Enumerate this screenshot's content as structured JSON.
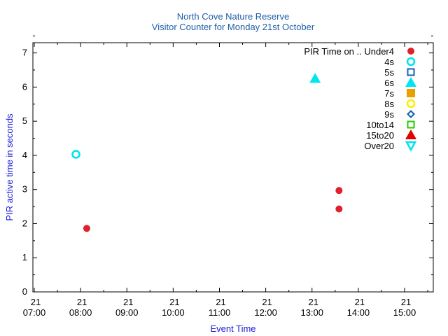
{
  "chart_data": {
    "type": "scatter",
    "title": "North Cove Nature Reserve",
    "subtitle": "Visitor Counter for Monday 21st October",
    "xlabel": "Event Time",
    "ylabel": "PIR active time in seconds",
    "title_color": "#1f5fa8",
    "ylim": [
      0,
      7.3
    ],
    "yticks": [
      0,
      1,
      2,
      3,
      4,
      5,
      6,
      7
    ],
    "xlim_hours": [
      6.97,
      15.62
    ],
    "xticks": [
      {
        "hour": 7,
        "day": "21",
        "time": "07:00"
      },
      {
        "hour": 8,
        "day": "21",
        "time": "08:00"
      },
      {
        "hour": 9,
        "day": "21",
        "time": "09:00"
      },
      {
        "hour": 10,
        "day": "21",
        "time": "10:00"
      },
      {
        "hour": 11,
        "day": "21",
        "time": "11:00"
      },
      {
        "hour": 12,
        "day": "21",
        "time": "12:00"
      },
      {
        "hour": 13,
        "day": "21",
        "time": "13:00"
      },
      {
        "hour": 14,
        "day": "21",
        "time": "14:00"
      },
      {
        "hour": 15,
        "day": "21",
        "time": "15:00"
      }
    ],
    "grid": false,
    "legend_placement": "top-right",
    "legend_title": "PIR Time on .. Under4",
    "series": [
      {
        "name": "Under4",
        "marker": "circle-filled",
        "color": "#e0202a",
        "points": [
          {
            "time": "08:08",
            "y": 1.86
          },
          {
            "time": "13:35",
            "y": 2.97
          },
          {
            "time": "13:35",
            "y": 2.43
          }
        ]
      },
      {
        "name": "4s",
        "marker": "circle-open",
        "color": "#00e5f0",
        "points": [
          {
            "time": "07:54",
            "y": 4.03
          }
        ]
      },
      {
        "name": "5s",
        "marker": "square-open",
        "color": "#1060b0",
        "points": []
      },
      {
        "name": "6s",
        "marker": "triangle-filled",
        "color": "#00e5f0",
        "points": [
          {
            "time": "13:04",
            "y": 6.25
          }
        ]
      },
      {
        "name": "7s",
        "marker": "square-filled",
        "color": "#e8a000",
        "points": []
      },
      {
        "name": "8s",
        "marker": "circle-open",
        "color": "#ffee00",
        "points": []
      },
      {
        "name": "9s",
        "marker": "diamond-open",
        "color": "#1060b0",
        "points": []
      },
      {
        "name": "10to14",
        "marker": "square-open",
        "color": "#22cc00",
        "points": []
      },
      {
        "name": "15to20",
        "marker": "triangle-filled",
        "color": "#e00000",
        "points": []
      },
      {
        "name": "Over20",
        "marker": "triangle-down-open",
        "color": "#00e5f0",
        "points": []
      }
    ]
  }
}
